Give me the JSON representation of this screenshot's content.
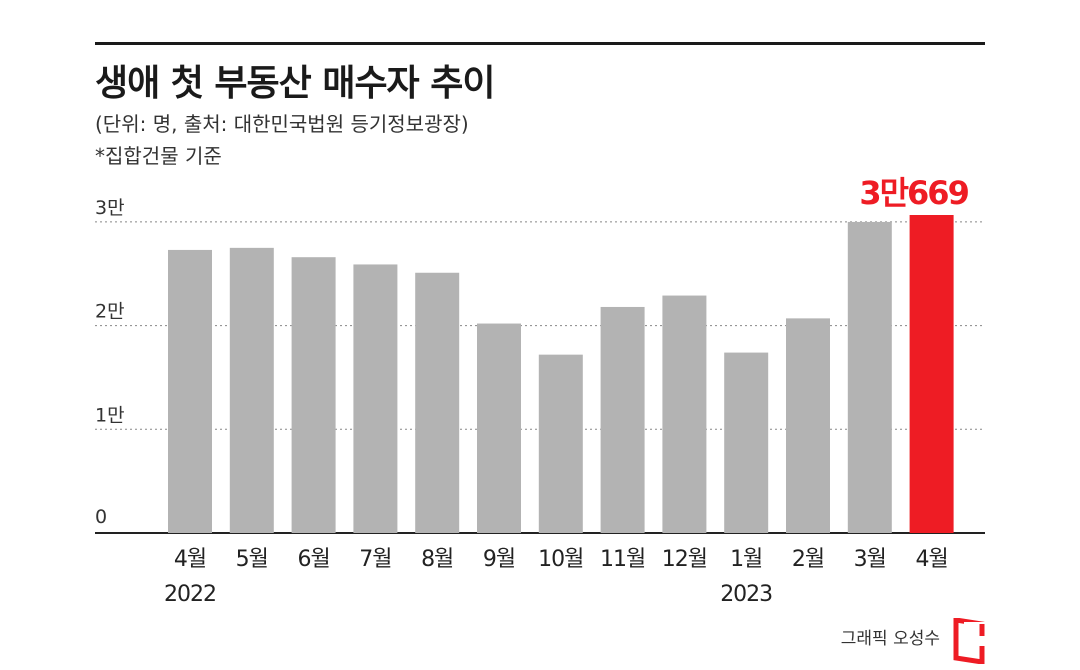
{
  "header": {
    "title": "생애 첫 부동산 매수자 추이",
    "subtitle": "(단위: 명, 출처: 대한민국법원 등기정보광장)",
    "note": "*집합건물 기준"
  },
  "footer": {
    "credit": "그래픽 오성수",
    "logo": "red-bracket-logo"
  },
  "chart_data": {
    "type": "bar",
    "title": "생애 첫 부동산 매수자 추이",
    "categories": [
      "4월",
      "5월",
      "6월",
      "7월",
      "8월",
      "9월",
      "10월",
      "11월",
      "12월",
      "1월",
      "2월",
      "3월",
      "4월"
    ],
    "year_labels": [
      {
        "category_index": 0,
        "label": "2022"
      },
      {
        "category_index": 9,
        "label": "2023"
      }
    ],
    "values": [
      27300,
      27500,
      26600,
      25900,
      25100,
      20200,
      17200,
      21800,
      22900,
      17400,
      20700,
      30000,
      30669
    ],
    "highlight_index": 12,
    "highlight_label": "3만669",
    "ylim": [
      0,
      30669
    ],
    "yticks": [
      {
        "value": 0,
        "label": "0"
      },
      {
        "value": 10000,
        "label": "1만"
      },
      {
        "value": 20000,
        "label": "2만"
      },
      {
        "value": 30000,
        "label": "3만"
      }
    ],
    "grid": true,
    "colors": {
      "bar": "#b3b3b3",
      "highlight": "#ee1c24",
      "axis": "#222222",
      "grid": "#888888"
    }
  }
}
